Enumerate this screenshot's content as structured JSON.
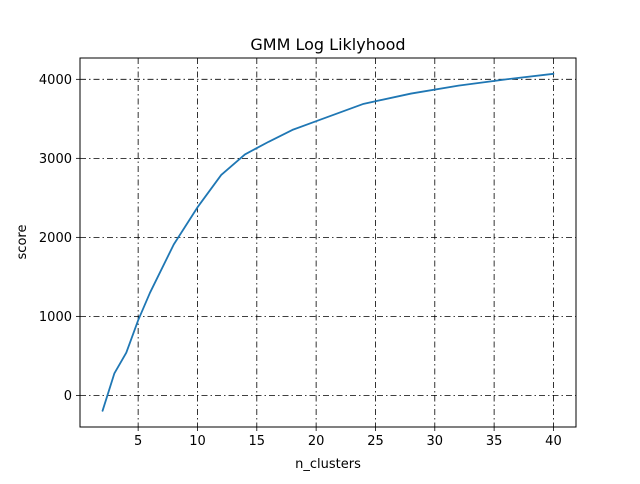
{
  "chart_data": {
    "type": "line",
    "title": "GMM Log Liklyhood",
    "xlabel": "n_clusters",
    "ylabel": "score",
    "xlim": [
      0.1,
      41.9
    ],
    "ylim": [
      -400,
      4270
    ],
    "x_ticks": [
      5,
      10,
      15,
      20,
      25,
      30,
      35,
      40
    ],
    "y_ticks": [
      0,
      1000,
      2000,
      3000,
      4000
    ],
    "x_tick_labels": [
      "5",
      "10",
      "15",
      "20",
      "25",
      "30",
      "35",
      "40"
    ],
    "y_tick_labels": [
      "0",
      "1000",
      "2000",
      "3000",
      "4000"
    ],
    "grid": true,
    "grid_style": "dashdot",
    "legend": "none",
    "series": [
      {
        "color": "#1f77b4",
        "x": [
          2,
          3,
          4,
          5,
          6,
          8,
          10,
          12,
          14,
          16,
          18,
          20,
          24,
          28,
          32,
          36,
          40
        ],
        "y": [
          -195,
          280,
          540,
          950,
          1300,
          1910,
          2380,
          2790,
          3050,
          3210,
          3360,
          3470,
          3690,
          3820,
          3920,
          4000,
          4070
        ]
      }
    ],
    "colors": {
      "line": "#1f77b4",
      "grid": "#000000",
      "axes": "#000000",
      "background": "#ffffff"
    }
  }
}
